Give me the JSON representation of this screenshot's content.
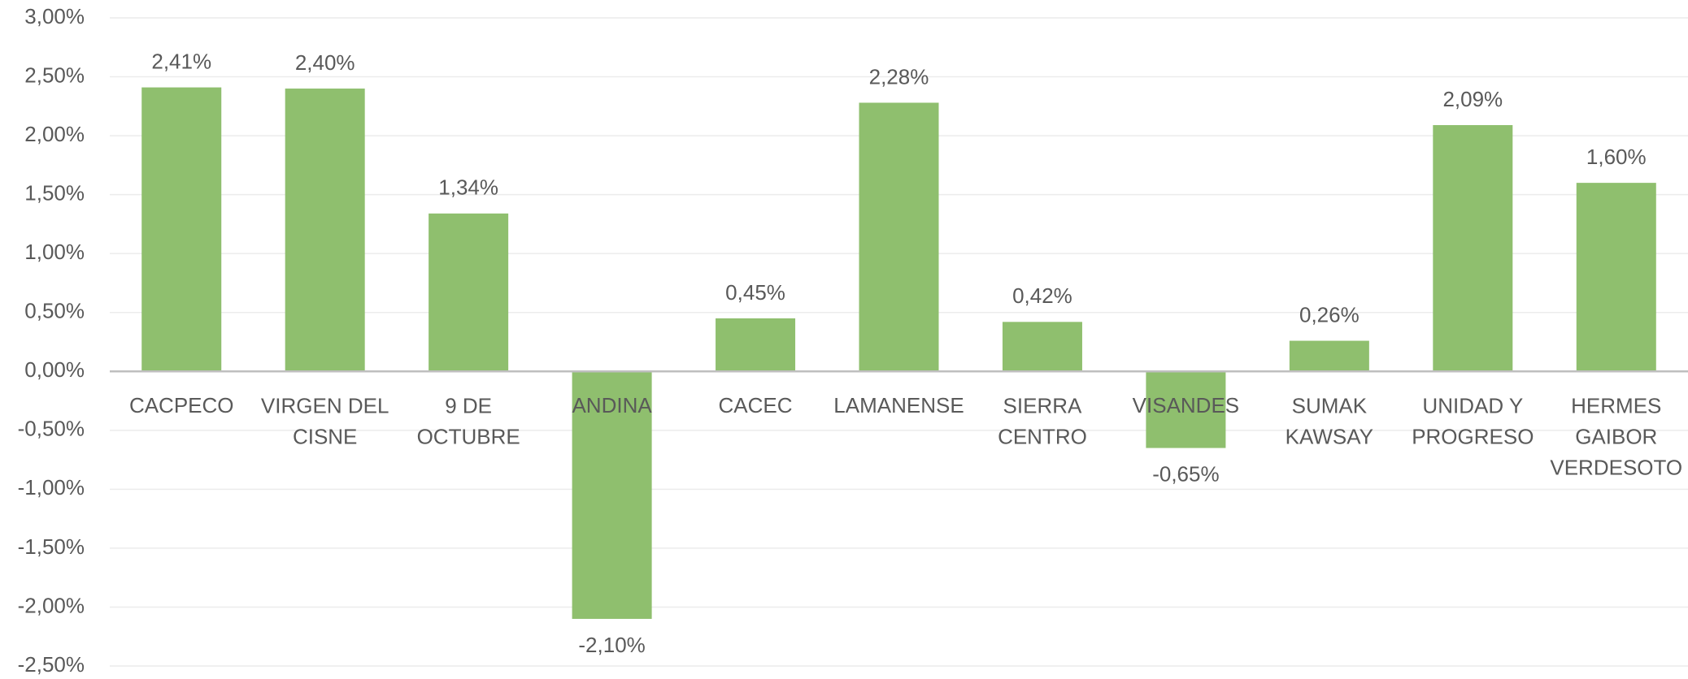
{
  "chart_data": {
    "type": "bar",
    "categories": [
      "CACPECO",
      "VIRGEN DEL\nCISNE",
      "9 DE\nOCTUBRE",
      "ANDINA",
      "CACEC",
      "LAMANENSE",
      "SIERRA\nCENTRO",
      "VISANDES",
      "SUMAK\nKAWSAY",
      "UNIDAD Y\nPROGRESO",
      "HERMES\nGAIBOR\nVERDESOTO"
    ],
    "values": [
      2.41,
      2.4,
      1.34,
      -2.1,
      0.45,
      2.28,
      0.42,
      -0.65,
      0.26,
      2.09,
      1.6
    ],
    "value_labels": [
      "2,41%",
      "2,40%",
      "1,34%",
      "-2,10%",
      "0,45%",
      "2,28%",
      "0,42%",
      "-0,65%",
      "0,26%",
      "2,09%",
      "1,60%"
    ],
    "color": "#8fbf6e",
    "ylim": [
      -2.5,
      3.0
    ],
    "yticks": [
      {
        "value": -2.5,
        "label": "-2,50%"
      },
      {
        "value": -2.0,
        "label": "-2,00%"
      },
      {
        "value": -1.5,
        "label": "-1,50%"
      },
      {
        "value": -1.0,
        "label": "-1,00%"
      },
      {
        "value": -0.5,
        "label": "-0,50%"
      },
      {
        "value": 0,
        "label": "0,00%"
      },
      {
        "value": 0.5,
        "label": "0,50%"
      },
      {
        "value": 1.0,
        "label": "1,00%"
      },
      {
        "value": 1.5,
        "label": "1,50%"
      },
      {
        "value": 2.0,
        "label": "2,00%"
      },
      {
        "value": 2.5,
        "label": "2,50%"
      },
      {
        "value": 3.0,
        "label": "3,00%"
      }
    ],
    "grid": true
  }
}
